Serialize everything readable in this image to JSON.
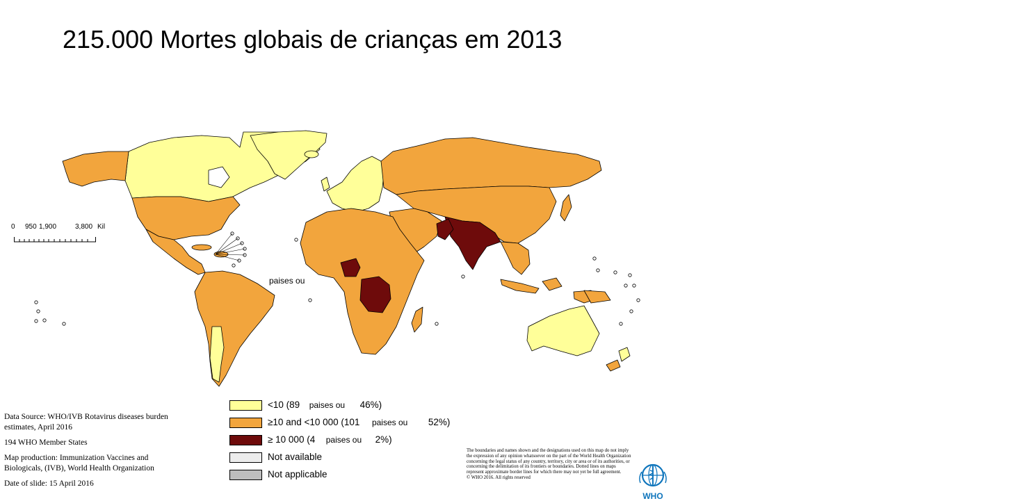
{
  "title": "215.000 Mortes globais de crianças em 2013",
  "scale_bar": {
    "labels": [
      "0",
      "950",
      "1,900",
      "3,800",
      "Kil"
    ]
  },
  "floating_label": "paises ou",
  "legend": [
    {
      "color": "#ffff99",
      "parts": [
        "<10 (89",
        "paises ou",
        "46%)"
      ]
    },
    {
      "color": "#f2a53d",
      "parts": [
        "≥10 and <10 000 (101",
        "paises ou",
        "52%)"
      ]
    },
    {
      "color": "#6e0b0b",
      "parts": [
        "≥ 10 000 (4",
        "paises ou",
        "2%)"
      ]
    },
    {
      "color": "#ececec",
      "parts": [
        "Not available"
      ]
    },
    {
      "color": "#bdbdbd",
      "parts": [
        "Not applicable"
      ]
    }
  ],
  "source": {
    "data_source": "Data Source: WHO/IVB Rotavirus diseases burden estimates, April 2016",
    "member_states": "194 WHO Member States",
    "map_production": "Map production: Immunization Vaccines and Biologicals, (IVB), World Health Organization",
    "date": "Date of slide: 15 April 2016"
  },
  "disclaimer": "The boundaries and names shown and the designations used on this map do not imply the expression of any opinion whatsoever on the part of the World Health Organization concerning the legal status of any country, territory, city or area or of its authorities, or concerning the delimitation of its frontiers or boundaries. Dotted lines on maps represent approximate border lines for which there may not yet be full agreement.",
  "copyright": "© WHO 2016. All rights reserved",
  "logo_text": "WHO",
  "colors": {
    "low": "#ffff99",
    "mid": "#f2a53d",
    "high": "#6e0b0b",
    "not_available": "#ececec",
    "not_applicable": "#bdbdbd",
    "who_blue": "#0f75bc"
  }
}
